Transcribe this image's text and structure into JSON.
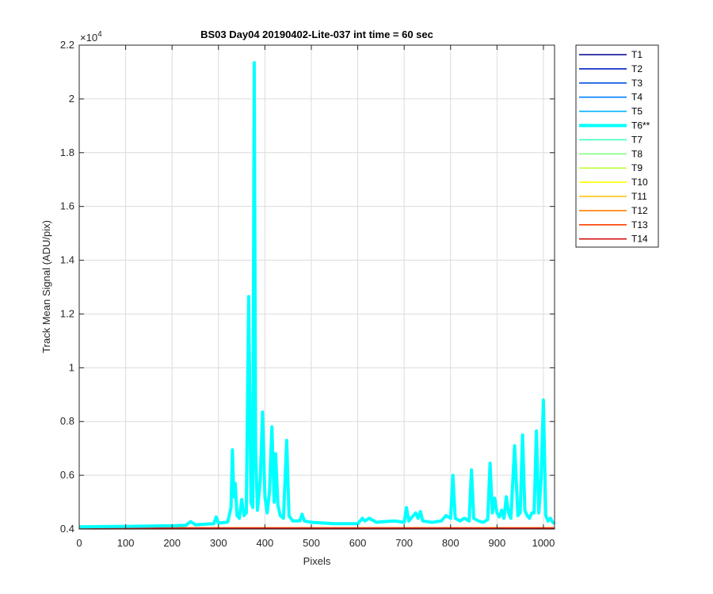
{
  "chart_data": {
    "type": "line",
    "title": "BS03 Day04 20190402-Lite-037 int time = 60 sec",
    "xlabel": "Pixels",
    "ylabel": "Track Mean Signal (ADU/pix)",
    "xlim": [
      0,
      1024
    ],
    "ylim": [
      4000,
      22000
    ],
    "x_ticks": [
      0,
      100,
      200,
      300,
      400,
      500,
      600,
      700,
      800,
      900,
      1000
    ],
    "x_tick_labels": [
      "0",
      "100",
      "200",
      "300",
      "400",
      "500",
      "600",
      "700",
      "800",
      "900",
      "1000"
    ],
    "y_ticks": [
      4000,
      6000,
      8000,
      10000,
      12000,
      14000,
      16000,
      18000,
      20000,
      22000
    ],
    "y_tick_labels": [
      "0.4",
      "0.6",
      "0.8",
      "1",
      "1.2",
      "1.4",
      "1.6",
      "1.8",
      "2",
      "2.2"
    ],
    "y_exponent_label": "×10",
    "y_exponent_power": "4",
    "grid": true,
    "legend_position": "outside-top-right",
    "series": [
      {
        "name": "T1",
        "color": "#00008f",
        "bold": false,
        "points": [
          [
            0,
            4040
          ],
          [
            1024,
            4040
          ]
        ]
      },
      {
        "name": "T2",
        "color": "#0020c0",
        "bold": false,
        "points": [
          [
            0,
            4040
          ],
          [
            1024,
            4040
          ]
        ]
      },
      {
        "name": "T3",
        "color": "#0050e0",
        "bold": false,
        "points": [
          [
            0,
            4040
          ],
          [
            1024,
            4040
          ]
        ]
      },
      {
        "name": "T4",
        "color": "#0080ff",
        "bold": false,
        "points": [
          [
            0,
            4040
          ],
          [
            1024,
            4040
          ]
        ]
      },
      {
        "name": "T5",
        "color": "#00b0ff",
        "bold": false,
        "points": [
          [
            0,
            4040
          ],
          [
            1024,
            4040
          ]
        ]
      },
      {
        "name": "T6**",
        "color": "#00ffff",
        "bold": true,
        "points": [
          [
            0,
            4080
          ],
          [
            50,
            4090
          ],
          [
            100,
            4100
          ],
          [
            150,
            4110
          ],
          [
            180,
            4120
          ],
          [
            200,
            4120
          ],
          [
            230,
            4140
          ],
          [
            240,
            4280
          ],
          [
            250,
            4160
          ],
          [
            290,
            4200
          ],
          [
            295,
            4450
          ],
          [
            300,
            4220
          ],
          [
            320,
            4260
          ],
          [
            327,
            4800
          ],
          [
            330,
            6950
          ],
          [
            333,
            5200
          ],
          [
            336,
            5700
          ],
          [
            340,
            4500
          ],
          [
            345,
            4400
          ],
          [
            350,
            5100
          ],
          [
            355,
            4500
          ],
          [
            360,
            4600
          ],
          [
            365,
            12650
          ],
          [
            370,
            5000
          ],
          [
            374,
            4800
          ],
          [
            377,
            21350
          ],
          [
            380,
            6800
          ],
          [
            384,
            4700
          ],
          [
            390,
            5800
          ],
          [
            395,
            8350
          ],
          [
            400,
            5200
          ],
          [
            405,
            4600
          ],
          [
            410,
            5400
          ],
          [
            415,
            7800
          ],
          [
            420,
            5000
          ],
          [
            423,
            6800
          ],
          [
            428,
            4900
          ],
          [
            433,
            4500
          ],
          [
            440,
            4400
          ],
          [
            447,
            7300
          ],
          [
            452,
            4500
          ],
          [
            460,
            4300
          ],
          [
            475,
            4300
          ],
          [
            480,
            4550
          ],
          [
            485,
            4300
          ],
          [
            500,
            4250
          ],
          [
            550,
            4200
          ],
          [
            600,
            4200
          ],
          [
            610,
            4400
          ],
          [
            615,
            4300
          ],
          [
            625,
            4400
          ],
          [
            640,
            4250
          ],
          [
            660,
            4280
          ],
          [
            680,
            4300
          ],
          [
            700,
            4250
          ],
          [
            705,
            4800
          ],
          [
            710,
            4300
          ],
          [
            720,
            4500
          ],
          [
            725,
            4600
          ],
          [
            730,
            4400
          ],
          [
            735,
            4650
          ],
          [
            740,
            4300
          ],
          [
            760,
            4250
          ],
          [
            780,
            4300
          ],
          [
            790,
            4500
          ],
          [
            800,
            4400
          ],
          [
            805,
            6000
          ],
          [
            810,
            4400
          ],
          [
            820,
            4300
          ],
          [
            830,
            4400
          ],
          [
            840,
            4300
          ],
          [
            845,
            6200
          ],
          [
            850,
            4400
          ],
          [
            860,
            4300
          ],
          [
            870,
            4250
          ],
          [
            880,
            4350
          ],
          [
            885,
            6450
          ],
          [
            890,
            4600
          ],
          [
            895,
            5150
          ],
          [
            900,
            4600
          ],
          [
            905,
            4450
          ],
          [
            910,
            4700
          ],
          [
            915,
            4400
          ],
          [
            920,
            5200
          ],
          [
            925,
            4600
          ],
          [
            930,
            4400
          ],
          [
            938,
            7100
          ],
          [
            945,
            4500
          ],
          [
            950,
            4600
          ],
          [
            955,
            7500
          ],
          [
            960,
            4700
          ],
          [
            965,
            4500
          ],
          [
            970,
            4400
          ],
          [
            975,
            4600
          ],
          [
            980,
            4600
          ],
          [
            985,
            7650
          ],
          [
            990,
            4600
          ],
          [
            995,
            5800
          ],
          [
            1000,
            8800
          ],
          [
            1005,
            4500
          ],
          [
            1010,
            4300
          ],
          [
            1015,
            4400
          ],
          [
            1020,
            4250
          ],
          [
            1024,
            4200
          ]
        ]
      },
      {
        "name": "T7",
        "color": "#40ffbf",
        "bold": false,
        "points": [
          [
            0,
            4040
          ],
          [
            1024,
            4040
          ]
        ]
      },
      {
        "name": "T8",
        "color": "#80ff80",
        "bold": false,
        "points": [
          [
            0,
            4040
          ],
          [
            1024,
            4040
          ]
        ]
      },
      {
        "name": "T9",
        "color": "#bfff40",
        "bold": false,
        "points": [
          [
            0,
            4040
          ],
          [
            1024,
            4040
          ]
        ]
      },
      {
        "name": "T10",
        "color": "#ffff00",
        "bold": false,
        "points": [
          [
            0,
            4040
          ],
          [
            1024,
            4040
          ]
        ]
      },
      {
        "name": "T11",
        "color": "#ffbf00",
        "bold": false,
        "points": [
          [
            0,
            4040
          ],
          [
            1024,
            4040
          ]
        ]
      },
      {
        "name": "T12",
        "color": "#ff8000",
        "bold": false,
        "points": [
          [
            0,
            4040
          ],
          [
            1024,
            4040
          ]
        ]
      },
      {
        "name": "T13",
        "color": "#ff4000",
        "bold": false,
        "points": [
          [
            0,
            4040
          ],
          [
            1024,
            4040
          ]
        ]
      },
      {
        "name": "T14",
        "color": "#d01010",
        "bold": false,
        "points": [
          [
            0,
            4030
          ],
          [
            1024,
            4030
          ]
        ]
      }
    ]
  }
}
